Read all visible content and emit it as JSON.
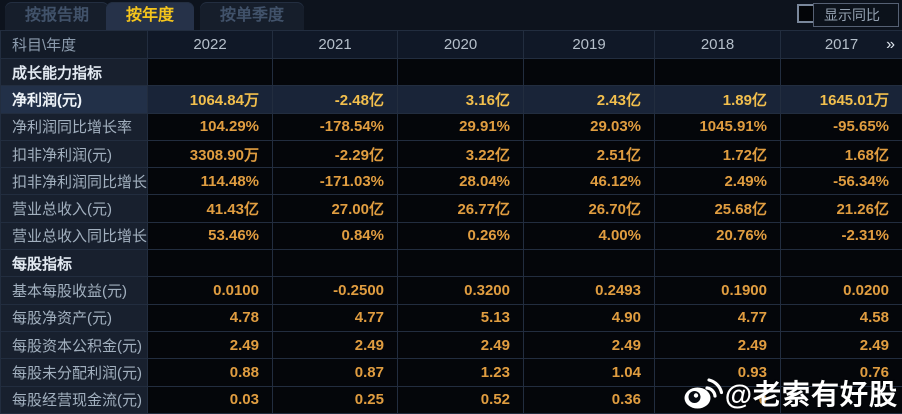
{
  "tabs": [
    {
      "label": "按报告期",
      "active": false
    },
    {
      "label": "按年度",
      "active": true
    },
    {
      "label": "按单季度",
      "active": false
    }
  ],
  "controls": {
    "show_yoy_label": "显示同比",
    "checkbox_checked": false
  },
  "table": {
    "corner_label": "科目\\年度",
    "years": [
      "2022",
      "2021",
      "2020",
      "2019",
      "2018",
      "2017"
    ],
    "more_icon": "»",
    "rows": [
      {
        "type": "section",
        "label": "成长能力指标",
        "values": [
          "",
          "",
          "",
          "",
          "",
          ""
        ]
      },
      {
        "type": "data",
        "highlight": true,
        "label": "净利润(元)",
        "values": [
          "1064.84万",
          "-2.48亿",
          "3.16亿",
          "2.43亿",
          "1.89亿",
          "1645.01万"
        ]
      },
      {
        "type": "data",
        "label": "净利润同比增长率",
        "values": [
          "104.29%",
          "-178.54%",
          "29.91%",
          "29.03%",
          "1045.91%",
          "-95.65%"
        ]
      },
      {
        "type": "data",
        "label": "扣非净利润(元)",
        "values": [
          "3308.90万",
          "-2.29亿",
          "3.22亿",
          "2.51亿",
          "1.72亿",
          "1.68亿"
        ]
      },
      {
        "type": "data",
        "label": "扣非净利润同比增长率",
        "values": [
          "114.48%",
          "-171.03%",
          "28.04%",
          "46.12%",
          "2.49%",
          "-56.34%"
        ]
      },
      {
        "type": "data",
        "label": "营业总收入(元)",
        "values": [
          "41.43亿",
          "27.00亿",
          "26.77亿",
          "26.70亿",
          "25.68亿",
          "21.26亿"
        ]
      },
      {
        "type": "data",
        "label": "营业总收入同比增长率",
        "values": [
          "53.46%",
          "0.84%",
          "0.26%",
          "4.00%",
          "20.76%",
          "-2.31%"
        ]
      },
      {
        "type": "section",
        "label": "每股指标",
        "values": [
          "",
          "",
          "",
          "",
          "",
          ""
        ]
      },
      {
        "type": "data",
        "label": "基本每股收益(元)",
        "values": [
          "0.0100",
          "-0.2500",
          "0.3200",
          "0.2493",
          "0.1900",
          "0.0200"
        ]
      },
      {
        "type": "data",
        "label": "每股净资产(元)",
        "values": [
          "4.78",
          "4.77",
          "5.13",
          "4.90",
          "4.77",
          "4.58"
        ]
      },
      {
        "type": "data",
        "label": "每股资本公积金(元)",
        "values": [
          "2.49",
          "2.49",
          "2.49",
          "2.49",
          "2.49",
          "2.49"
        ]
      },
      {
        "type": "data",
        "label": "每股未分配利润(元)",
        "values": [
          "0.88",
          "0.87",
          "1.23",
          "1.04",
          "0.93",
          "0.76"
        ]
      },
      {
        "type": "data",
        "label": "每股经营现金流(元)",
        "values": [
          "0.03",
          "0.25",
          "0.52",
          "0.36",
          "0",
          ""
        ]
      }
    ]
  },
  "watermark": {
    "text": "@老索有好股"
  },
  "colors": {
    "active_tab_text": "#f5c51c",
    "value_orange": "#e09d40",
    "highlight_value_gold": "#f2bf4d",
    "highlight_row_bg": "#192438",
    "label_cell_bg": "#18202e",
    "data_cell_bg": "#04060a",
    "grid_line": "#222d3f"
  }
}
